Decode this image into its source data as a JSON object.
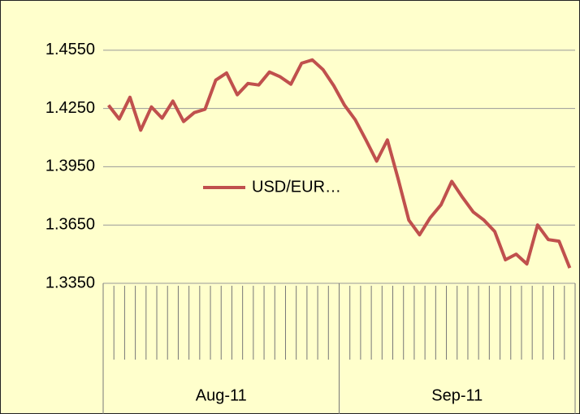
{
  "chart_data": {
    "type": "line",
    "categories": [
      "Aug-11",
      null,
      null,
      null,
      null,
      null,
      null,
      null,
      null,
      null,
      null,
      null,
      null,
      null,
      null,
      null,
      null,
      null,
      null,
      null,
      null,
      null,
      "Sep-11",
      null,
      null,
      null,
      null,
      null,
      null,
      null,
      null,
      null,
      null,
      null,
      null,
      null,
      null,
      null,
      null,
      null,
      null,
      null,
      null,
      null
    ],
    "series": [
      {
        "name": "USD/EUR…",
        "color": "#c0504d",
        "values": [
          1.4267,
          1.4196,
          1.4308,
          1.4138,
          1.4258,
          1.42,
          1.4288,
          1.4183,
          1.4229,
          1.4246,
          1.4396,
          1.4433,
          1.4321,
          1.4379,
          1.4371,
          1.4438,
          1.4413,
          1.4375,
          1.4483,
          1.45,
          1.445,
          1.4367,
          1.4267,
          1.4192,
          1.4088,
          1.3979,
          1.4088,
          1.3888,
          1.3675,
          1.36,
          1.3688,
          1.3754,
          1.3875,
          1.3792,
          1.3717,
          1.3675,
          1.3617,
          1.3471,
          1.35,
          1.345,
          1.365,
          1.3575,
          1.3567,
          1.3429
        ]
      }
    ],
    "ylim": [
      1.335,
      1.475
    ],
    "yticks": [
      {
        "value": 1.335,
        "label": "1.3350"
      },
      {
        "value": 1.365,
        "label": "1.3650"
      },
      {
        "value": 1.395,
        "label": "1.3950"
      },
      {
        "value": 1.425,
        "label": "1.4250"
      },
      {
        "value": 1.455,
        "label": "1.4550"
      }
    ],
    "grid": true
  }
}
